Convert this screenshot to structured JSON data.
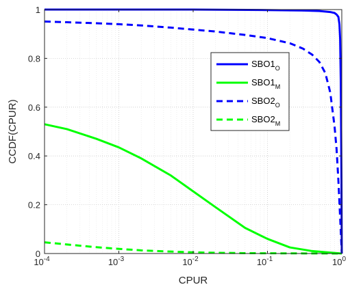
{
  "chart_data": {
    "type": "line",
    "xlabel": "CPUR",
    "ylabel": "CCDF(CPUR)",
    "xscale": "log",
    "xlim": [
      0.0001,
      1
    ],
    "ylim": [
      0,
      1
    ],
    "grid": "on (major and minor, dotted)",
    "legend_location": "upper-right (inside)",
    "x_tick_labels": [
      {
        "base": "10",
        "exp": "-4"
      },
      {
        "base": "10",
        "exp": "-3"
      },
      {
        "base": "10",
        "exp": "-2"
      },
      {
        "base": "10",
        "exp": "-1"
      },
      {
        "base": "10",
        "exp": "0"
      }
    ],
    "x_ticks": [
      0.0001,
      0.001,
      0.01,
      0.1,
      1
    ],
    "y_ticks": [
      0,
      0.2,
      0.4,
      0.6,
      0.8,
      1
    ],
    "y_tick_labels": [
      "0",
      "0.2",
      "0.4",
      "0.6",
      "0.8",
      "1"
    ],
    "series": [
      {
        "name": "SBO1",
        "name_sub": "O",
        "color": "#0000ff",
        "style": "solid",
        "x": [
          0.0001,
          0.001,
          0.01,
          0.1,
          0.3,
          0.5,
          0.7,
          0.8,
          0.85,
          0.9,
          0.93,
          0.95,
          0.97,
          0.99,
          1
        ],
        "y": [
          1.0,
          1.0,
          1.0,
          0.998,
          0.996,
          0.994,
          0.99,
          0.986,
          0.98,
          0.97,
          0.94,
          0.88,
          0.7,
          0.3,
          0
        ]
      },
      {
        "name": "SBO1",
        "name_sub": "M",
        "color": "#00ff00",
        "style": "solid",
        "x": [
          0.0001,
          0.0002,
          0.0005,
          0.001,
          0.002,
          0.005,
          0.01,
          0.02,
          0.05,
          0.1,
          0.2,
          0.4,
          0.7,
          1
        ],
        "y": [
          0.53,
          0.51,
          0.47,
          0.435,
          0.39,
          0.32,
          0.255,
          0.19,
          0.105,
          0.06,
          0.025,
          0.01,
          0.004,
          0
        ]
      },
      {
        "name": "SBO2",
        "name_sub": "O",
        "color": "#0000ff",
        "style": "dashed",
        "x": [
          0.0001,
          0.0002,
          0.0005,
          0.001,
          0.002,
          0.005,
          0.01,
          0.02,
          0.05,
          0.1,
          0.2,
          0.3,
          0.4,
          0.5,
          0.6,
          0.7,
          0.8,
          0.85,
          0.9,
          0.95,
          1
        ],
        "y": [
          0.951,
          0.948,
          0.944,
          0.94,
          0.935,
          0.926,
          0.918,
          0.91,
          0.896,
          0.883,
          0.862,
          0.84,
          0.815,
          0.785,
          0.74,
          0.66,
          0.52,
          0.43,
          0.3,
          0.15,
          0
        ]
      },
      {
        "name": "SBO2",
        "name_sub": "M",
        "color": "#00ff00",
        "style": "dashed",
        "x": [
          0.0001,
          0.0002,
          0.0005,
          0.001,
          0.002,
          0.005,
          0.01,
          0.02,
          0.05,
          0.1,
          0.3,
          1
        ],
        "y": [
          0.046,
          0.037,
          0.026,
          0.019,
          0.013,
          0.008,
          0.005,
          0.003,
          0.0015,
          0.001,
          0.0005,
          0
        ]
      }
    ]
  }
}
